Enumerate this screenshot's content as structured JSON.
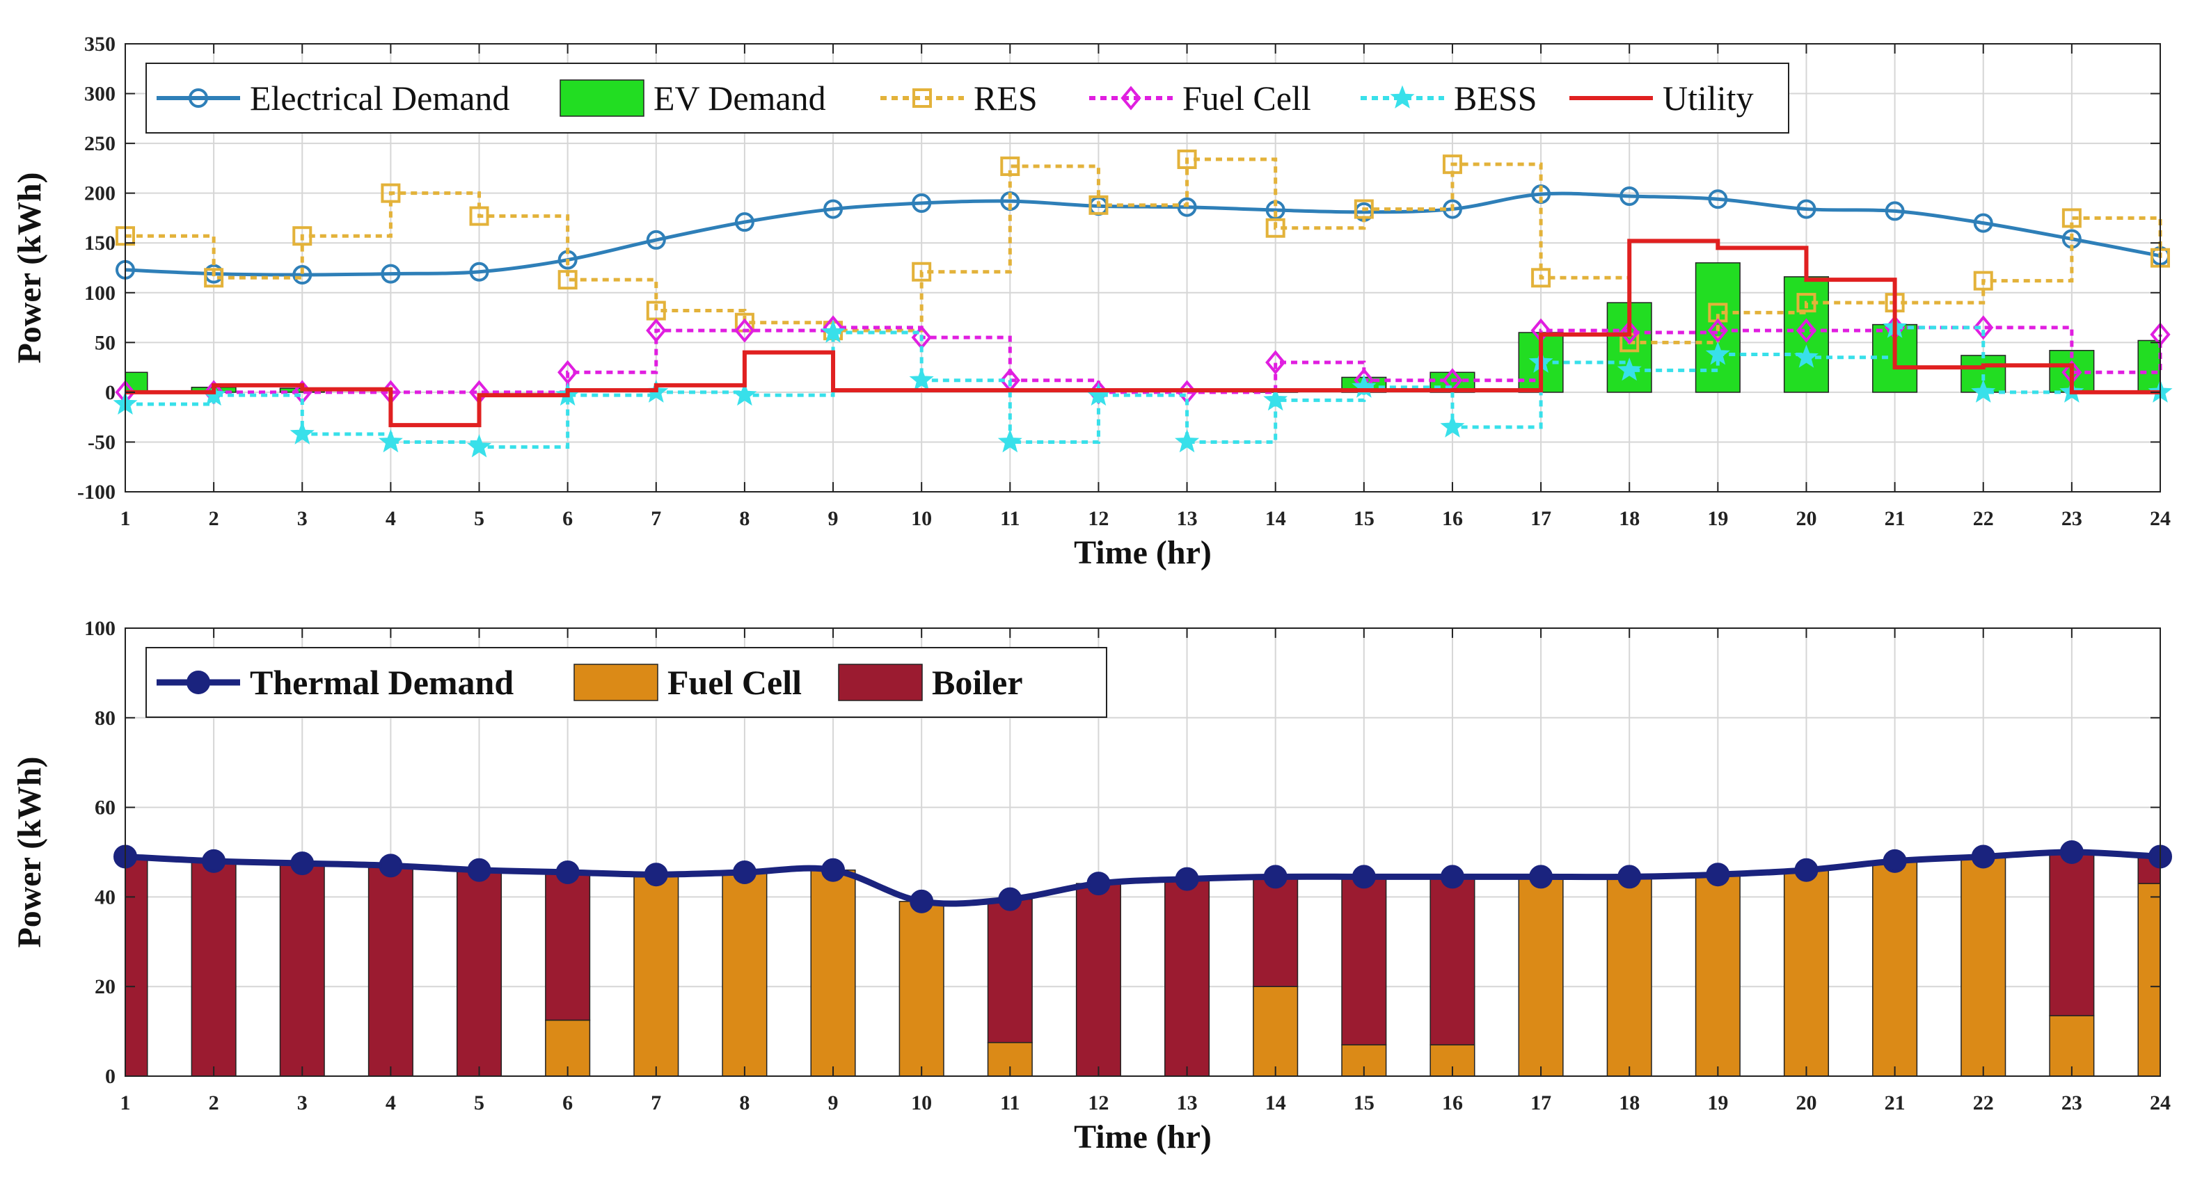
{
  "chart_data": [
    {
      "type": "line",
      "xlabel": "Time (hr)",
      "ylabel": "Power (kWh)",
      "ylim": [
        -100,
        350
      ],
      "yticks": [
        -100,
        -50,
        0,
        50,
        100,
        150,
        200,
        250,
        300,
        350
      ],
      "xlim": [
        1,
        24
      ],
      "x": [
        1,
        2,
        3,
        4,
        5,
        6,
        7,
        8,
        9,
        10,
        11,
        12,
        13,
        14,
        15,
        16,
        17,
        18,
        19,
        20,
        21,
        22,
        23,
        24
      ],
      "grid": true,
      "legend_location": "top-left",
      "series": [
        {
          "name": "Electrical Demand",
          "kind": "line-marker",
          "marker": "circle",
          "color": "#2e7fb8",
          "values": [
            123,
            119,
            118,
            119,
            121,
            133,
            153,
            171,
            184,
            190,
            192,
            187,
            186,
            183,
            181,
            184,
            199,
            197,
            194,
            184,
            182,
            170,
            154,
            137
          ]
        },
        {
          "name": "EV Demand",
          "kind": "bar",
          "color": "#22dd22",
          "values": [
            20,
            5,
            4,
            0,
            0,
            0,
            0,
            0,
            0,
            0,
            0,
            0,
            0,
            3,
            15,
            20,
            60,
            90,
            130,
            116,
            68,
            37,
            42,
            52
          ]
        },
        {
          "name": "RES",
          "kind": "step",
          "marker": "square",
          "color": "#e3b23a",
          "values": [
            157,
            115,
            157,
            200,
            177,
            113,
            82,
            70,
            62,
            121,
            227,
            188,
            234,
            165,
            184,
            229,
            115,
            50,
            80,
            90,
            90,
            112,
            175,
            135
          ]
        },
        {
          "name": "Fuel Cell",
          "kind": "step",
          "marker": "diamond",
          "color": "#e01ee0",
          "values": [
            0,
            0,
            0,
            0,
            0,
            20,
            62,
            62,
            65,
            55,
            12,
            0,
            0,
            30,
            12,
            12,
            62,
            60,
            62,
            62,
            65,
            65,
            20,
            58
          ]
        },
        {
          "name": "BESS",
          "kind": "step",
          "marker": "star",
          "color": "#38e0ea",
          "values": [
            -12,
            -3,
            -42,
            -50,
            -55,
            -3,
            0,
            -3,
            60,
            12,
            -50,
            -3,
            -50,
            -8,
            5,
            -35,
            30,
            22,
            38,
            35,
            65,
            0,
            0,
            0
          ]
        },
        {
          "name": "Utility",
          "kind": "step",
          "color": "#e02020",
          "values": [
            0,
            7,
            3,
            -33,
            -3,
            2,
            7,
            40,
            2,
            2,
            2,
            2,
            2,
            2,
            2,
            2,
            58,
            152,
            145,
            113,
            25,
            27,
            0,
            0
          ]
        }
      ]
    },
    {
      "type": "bar",
      "xlabel": "Time (hr)",
      "ylabel": "Power (kWh)",
      "ylim": [
        0,
        100
      ],
      "yticks": [
        0,
        20,
        40,
        60,
        80,
        100
      ],
      "xlim": [
        1,
        24
      ],
      "x": [
        1,
        2,
        3,
        4,
        5,
        6,
        7,
        8,
        9,
        10,
        11,
        12,
        13,
        14,
        15,
        16,
        17,
        18,
        19,
        20,
        21,
        22,
        23,
        24
      ],
      "grid": true,
      "stacked": true,
      "legend_location": "top-left",
      "series": [
        {
          "name": "Thermal Demand",
          "kind": "line-marker",
          "marker": "circle",
          "color": "#1a237e",
          "values": [
            49,
            48,
            47.5,
            47,
            46,
            45.5,
            45,
            45.5,
            46,
            39,
            39.5,
            43,
            44,
            44.5,
            44.5,
            44.5,
            44.5,
            44.5,
            45,
            46,
            48,
            49,
            50,
            49
          ]
        },
        {
          "name": "Fuel Cell",
          "kind": "bar",
          "color": "#db8a17",
          "values": [
            0,
            0,
            0,
            0,
            0,
            12.5,
            45,
            45.5,
            46,
            39,
            7.5,
            0,
            0,
            20,
            7,
            7,
            44.5,
            44.5,
            45,
            46,
            48,
            49,
            13.5,
            43
          ]
        },
        {
          "name": "Boiler",
          "kind": "bar",
          "color": "#9b1b30",
          "values": [
            49,
            48,
            47.5,
            47,
            46,
            33,
            0,
            0,
            0,
            0,
            32,
            43,
            44,
            24.5,
            37.5,
            37.5,
            0,
            0,
            0,
            0,
            0,
            0,
            36.5,
            6
          ]
        }
      ]
    }
  ]
}
